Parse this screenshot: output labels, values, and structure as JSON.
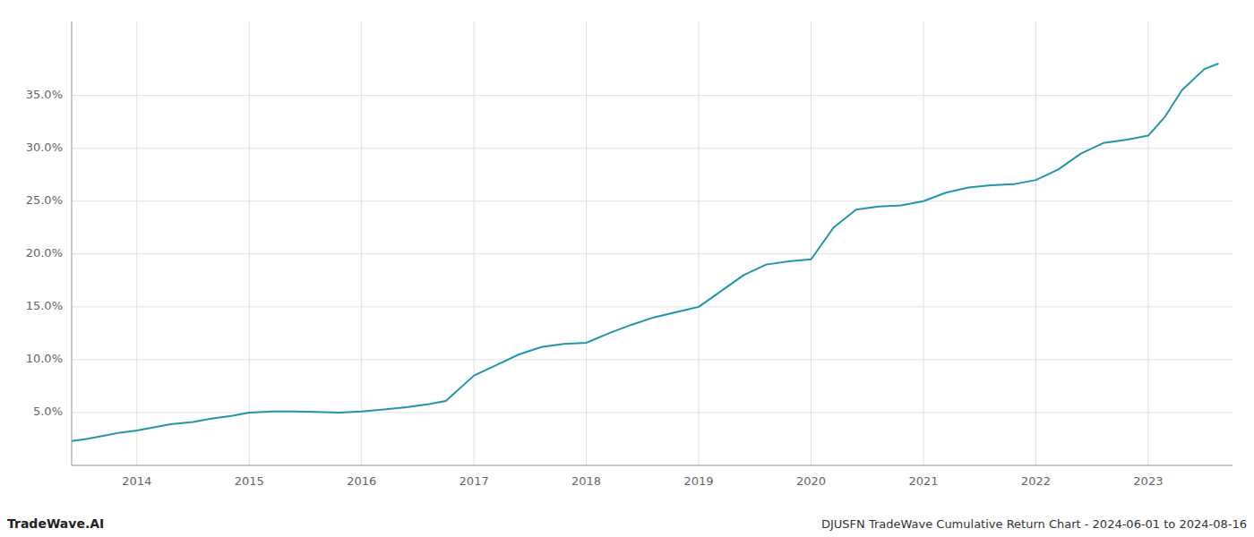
{
  "chart_data": {
    "type": "line",
    "title": "DJUSFN TradeWave Cumulative Return Chart - 2024-06-01 to 2024-08-16",
    "annotations": [
      "TradeWave.AI"
    ],
    "color": "#2196a8",
    "grid": true,
    "x": [
      2013.42,
      2013.55,
      2013.7,
      2013.85,
      2014.0,
      2014.15,
      2014.3,
      2014.5,
      2014.65,
      2014.85,
      2015.0,
      2015.2,
      2015.4,
      2015.6,
      2015.8,
      2016.0,
      2016.2,
      2016.4,
      2016.6,
      2016.75,
      2017.0,
      2017.2,
      2017.4,
      2017.6,
      2017.8,
      2018.0,
      2018.2,
      2018.4,
      2018.6,
      2018.8,
      2019.0,
      2019.2,
      2019.4,
      2019.6,
      2019.8,
      2020.0,
      2020.2,
      2020.4,
      2020.6,
      2020.8,
      2021.0,
      2021.2,
      2021.4,
      2021.6,
      2021.8,
      2022.0,
      2022.2,
      2022.4,
      2022.6,
      2022.8,
      2023.0,
      2023.15,
      2023.3,
      2023.5,
      2023.62
    ],
    "values": [
      2.3,
      2.5,
      2.8,
      3.1,
      3.3,
      3.6,
      3.9,
      4.1,
      4.4,
      4.7,
      5.0,
      5.1,
      5.1,
      5.05,
      5.0,
      5.1,
      5.3,
      5.5,
      5.8,
      6.1,
      8.5,
      9.5,
      10.5,
      11.2,
      11.5,
      11.6,
      12.5,
      13.3,
      14.0,
      14.5,
      15.0,
      16.5,
      18.0,
      19.0,
      19.3,
      19.5,
      22.5,
      24.2,
      24.5,
      24.6,
      25.0,
      25.8,
      26.3,
      26.5,
      26.6,
      27.0,
      28.0,
      29.5,
      30.5,
      30.8,
      31.2,
      33.0,
      35.5,
      37.5,
      38.0
    ],
    "xlim": [
      2013.42,
      2023.75
    ],
    "xticks": [
      2014,
      2015,
      2016,
      2017,
      2018,
      2019,
      2020,
      2021,
      2022,
      2023
    ],
    "ylim": [
      0,
      42
    ],
    "yticks": [
      {
        "value": 5.0,
        "label": "5.0%"
      },
      {
        "value": 10.0,
        "label": "10.0%"
      },
      {
        "value": 15.0,
        "label": "15.0%"
      },
      {
        "value": 20.0,
        "label": "20.0%"
      },
      {
        "value": 25.0,
        "label": "25.0%"
      },
      {
        "value": 30.0,
        "label": "30.0%"
      },
      {
        "value": 35.0,
        "label": "35.0%"
      }
    ]
  }
}
